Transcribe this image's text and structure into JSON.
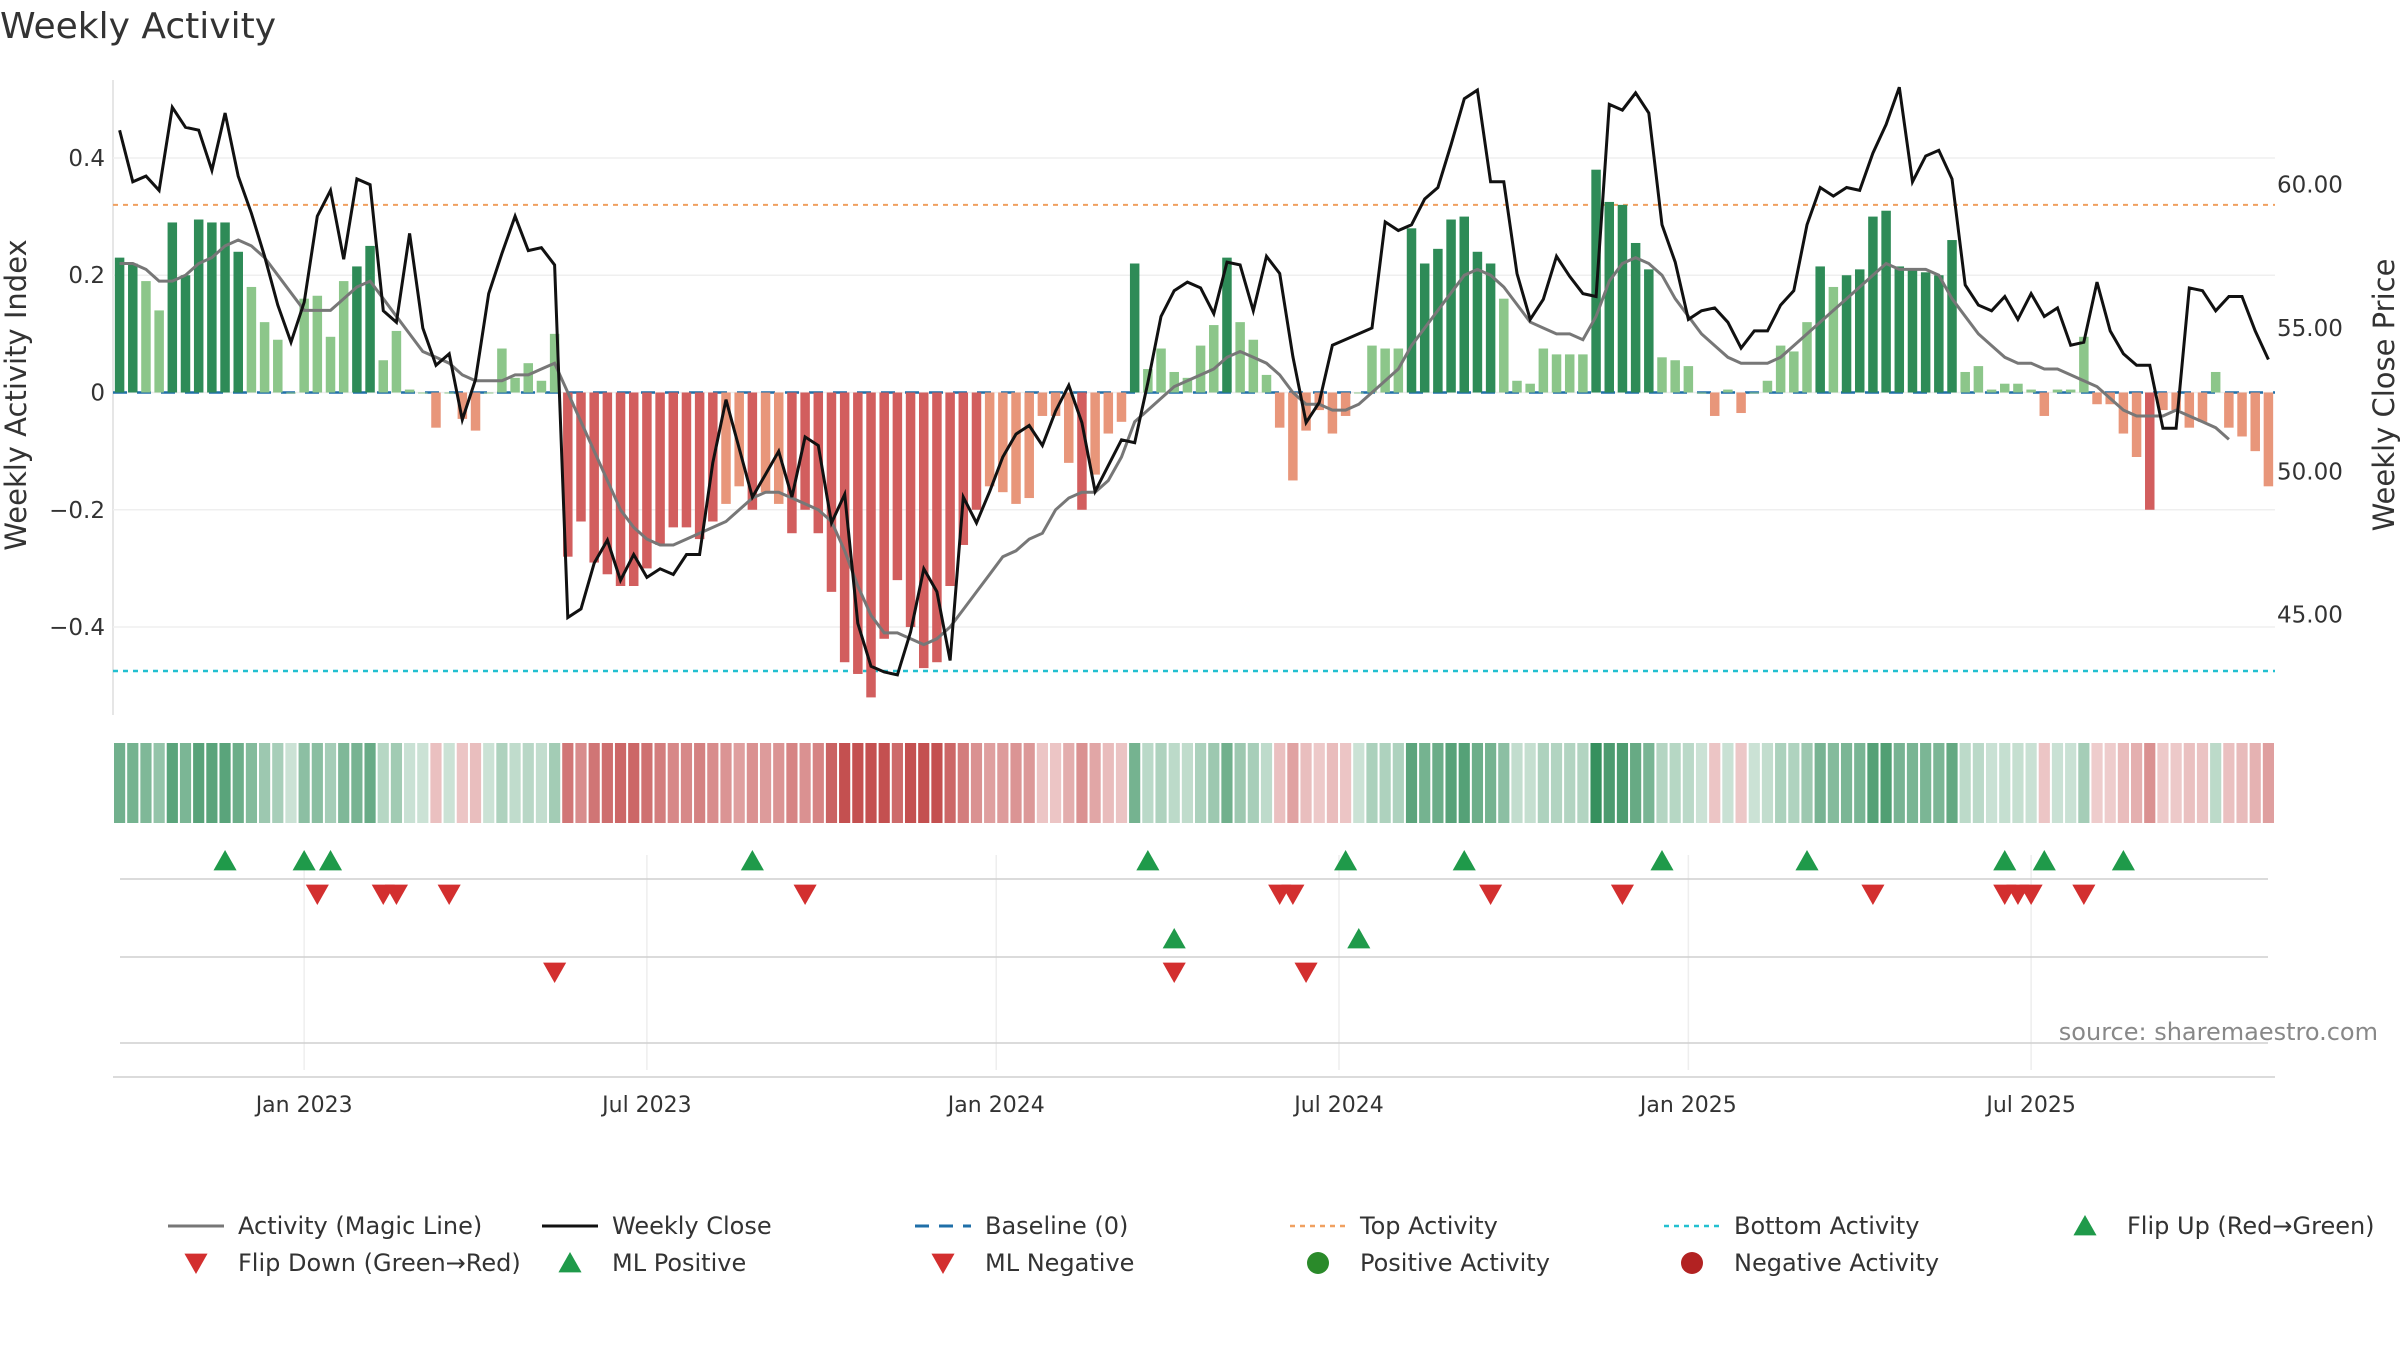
{
  "chart_data": {
    "type": "bar+line",
    "title": "Weekly Activity",
    "ylabel_left": "Weekly Activity Index",
    "ylabel_right": "Weekly Close Price",
    "left_ylim": [
      -0.55,
      0.55
    ],
    "left_ticks": [
      "0.4",
      "0.2",
      "0",
      "−0.2",
      "−0.4"
    ],
    "left_tick_values": [
      0.4,
      0.2,
      0,
      -0.2,
      -0.4
    ],
    "right_ylim": [
      41.5,
      64.0
    ],
    "right_ticks": [
      "60.00",
      "55.00",
      "50.00",
      "45.00"
    ],
    "right_tick_values": [
      60,
      55,
      50,
      45
    ],
    "x_ticks": [
      "Jan 2023",
      "Jul 2023",
      "Jan 2024",
      "Jul 2024",
      "Jan 2025",
      "Jul 2025"
    ],
    "x_tick_weeks": [
      14.5,
      40.5,
      67,
      93,
      119.5,
      145.5
    ],
    "top_activity": 0.32,
    "bottom_activity": -0.475,
    "baseline": 0,
    "activity": [
      0.23,
      0.22,
      0.19,
      0.14,
      0.29,
      0.2,
      0.295,
      0.29,
      0.29,
      0.24,
      0.18,
      0.12,
      0.09,
      0,
      0.16,
      0.165,
      0.095,
      0.19,
      0.215,
      0.25,
      0.055,
      0.105,
      0.005,
      0,
      -0.06,
      0,
      -0.045,
      -0.065,
      0,
      0.075,
      0.025,
      0.05,
      0.02,
      0.1,
      -0.28,
      -0.22,
      -0.29,
      -0.31,
      -0.33,
      -0.33,
      -0.3,
      -0.26,
      -0.23,
      -0.23,
      -0.25,
      -0.22,
      -0.19,
      -0.16,
      -0.2,
      -0.17,
      -0.19,
      -0.24,
      -0.2,
      -0.24,
      -0.34,
      -0.46,
      -0.48,
      -0.52,
      -0.42,
      -0.32,
      -0.4,
      -0.47,
      -0.46,
      -0.33,
      -0.26,
      -0.2,
      -0.16,
      -0.17,
      -0.19,
      -0.18,
      -0.04,
      -0.04,
      -0.12,
      -0.2,
      -0.14,
      -0.07,
      -0.05,
      0.22,
      0.04,
      0.075,
      0.035,
      0.025,
      0.08,
      0.115,
      0.23,
      0.12,
      0.09,
      0.03,
      -0.06,
      -0.15,
      -0.065,
      -0.03,
      -0.07,
      -0.04,
      0,
      0.08,
      0.075,
      0.075,
      0.28,
      0.22,
      0.245,
      0.295,
      0.3,
      0.24,
      0.22,
      0.16,
      0.02,
      0.015,
      0.075,
      0.065,
      0.065,
      0.065,
      0.38,
      0.325,
      0.32,
      0.255,
      0.21,
      0.06,
      0.055,
      0.045,
      0,
      -0.04,
      0.005,
      -0.035,
      0,
      0.02,
      0.08,
      0.07,
      0.12,
      0.215,
      0.18,
      0.2,
      0.21,
      0.3,
      0.31,
      0.215,
      0.21,
      0.205,
      0.2,
      0.26,
      0.035,
      0.045,
      0.005,
      0.015,
      0.015,
      0.005,
      -0.04,
      0.005,
      0.005,
      0.095,
      -0.02,
      -0.02,
      -0.07,
      -0.11,
      -0.2,
      -0.03,
      -0.03,
      -0.06,
      -0.05,
      0.035,
      -0.06,
      -0.075,
      -0.1,
      -0.16
    ],
    "magic_line": [
      0.22,
      0.22,
      0.21,
      0.19,
      0.19,
      0.2,
      0.22,
      0.23,
      0.25,
      0.26,
      0.25,
      0.23,
      0.2,
      0.17,
      0.14,
      0.14,
      0.14,
      0.16,
      0.18,
      0.19,
      0.16,
      0.13,
      0.1,
      0.07,
      0.06,
      0.05,
      0.03,
      0.02,
      0.02,
      0.02,
      0.03,
      0.03,
      0.04,
      0.05,
      0,
      -0.05,
      -0.1,
      -0.15,
      -0.2,
      -0.23,
      -0.25,
      -0.26,
      -0.26,
      -0.25,
      -0.24,
      -0.23,
      -0.22,
      -0.2,
      -0.18,
      -0.17,
      -0.17,
      -0.18,
      -0.19,
      -0.2,
      -0.22,
      -0.27,
      -0.33,
      -0.38,
      -0.41,
      -0.41,
      -0.42,
      -0.43,
      -0.42,
      -0.4,
      -0.37,
      -0.34,
      -0.31,
      -0.28,
      -0.27,
      -0.25,
      -0.24,
      -0.2,
      -0.18,
      -0.17,
      -0.17,
      -0.15,
      -0.11,
      -0.05,
      -0.03,
      -0.01,
      0.01,
      0.02,
      0.03,
      0.04,
      0.06,
      0.07,
      0.06,
      0.05,
      0.03,
      0,
      -0.02,
      -0.02,
      -0.03,
      -0.03,
      -0.02,
      0,
      0.02,
      0.04,
      0.08,
      0.11,
      0.14,
      0.17,
      0.2,
      0.21,
      0.2,
      0.18,
      0.15,
      0.12,
      0.11,
      0.1,
      0.1,
      0.09,
      0.13,
      0.19,
      0.22,
      0.23,
      0.22,
      0.2,
      0.16,
      0.13,
      0.1,
      0.08,
      0.06,
      0.05,
      0.05,
      0.05,
      0.06,
      0.08,
      0.1,
      0.12,
      0.14,
      0.16,
      0.18,
      0.2,
      0.22,
      0.21,
      0.21,
      0.21,
      0.2,
      0.16,
      0.13,
      0.1,
      0.08,
      0.06,
      0.05,
      0.05,
      0.04,
      0.04,
      0.03,
      0.02,
      0.01,
      -0.01,
      -0.03,
      -0.04,
      -0.04,
      -0.04,
      -0.03,
      -0.04,
      -0.05,
      -0.06,
      -0.08
    ],
    "weekly_close": [
      61.9,
      60.1,
      60.3,
      59.8,
      62.7,
      62.0,
      61.9,
      60.5,
      62.5,
      60.3,
      59.0,
      57.5,
      55.8,
      54.5,
      55.9,
      58.9,
      59.8,
      57.4,
      60.2,
      60.0,
      55.6,
      55.2,
      58.3,
      55.0,
      53.7,
      54.1,
      51.8,
      53.2,
      56.2,
      57.6,
      58.9,
      57.7,
      57.8,
      57.2,
      44.9,
      45.2,
      46.8,
      47.6,
      46.2,
      47.1,
      46.3,
      46.6,
      46.4,
      47.1,
      47.1,
      50.3,
      52.5,
      50.8,
      49.1,
      49.9,
      50.7,
      49.1,
      51.2,
      50.9,
      48.2,
      49.2,
      44.7,
      43.2,
      43.0,
      42.9,
      44.4,
      46.6,
      45.8,
      43.4,
      49.1,
      48.2,
      49.3,
      50.5,
      51.3,
      51.6,
      50.9,
      52.1,
      53.0,
      51.7,
      49.3,
      50.2,
      51.1,
      51.0,
      53.1,
      55.4,
      56.3,
      56.6,
      56.4,
      55.5,
      57.3,
      57.2,
      55.6,
      57.5,
      56.9,
      54.0,
      51.7,
      52.4,
      54.4,
      54.6,
      54.8,
      55.0,
      58.7,
      58.4,
      58.6,
      59.5,
      59.9,
      61.4,
      63.0,
      63.3,
      60.1,
      60.1,
      56.9,
      55.3,
      56.0,
      57.5,
      56.8,
      56.2,
      56.1,
      62.8,
      62.6,
      63.2,
      62.5,
      58.6,
      57.3,
      55.3,
      55.6,
      55.7,
      55.2,
      54.3,
      54.9,
      54.9,
      55.8,
      56.3,
      58.6,
      59.9,
      59.6,
      59.9,
      59.8,
      61.1,
      62.1,
      63.4,
      60.1,
      61.0,
      61.2,
      60.2,
      56.5,
      55.8,
      55.6,
      56.1,
      55.3,
      56.2,
      55.4,
      55.7,
      54.4,
      54.5,
      56.6,
      54.9,
      54.1,
      53.7,
      53.7,
      51.5,
      51.5,
      56.4,
      56.3,
      55.6,
      56.1,
      56.1,
      54.9,
      53.9
    ],
    "flip_up": [
      8,
      14,
      16,
      48,
      78,
      93,
      102,
      117,
      128,
      143,
      146,
      152
    ],
    "flip_down": [
      15,
      20,
      21,
      25,
      52,
      88,
      89,
      104,
      114,
      133,
      143,
      144,
      145,
      149
    ],
    "ml_positive": [
      80,
      94
    ],
    "ml_negative": [
      33,
      80,
      90
    ],
    "source": "source: sharemaestro.com",
    "legend": [
      "Activity (Magic Line)",
      "Weekly Close",
      "Baseline (0)",
      "Top Activity",
      "Bottom Activity",
      "Flip Up (Red→Green)",
      "Flip Down (Green→Red)",
      "ML Positive",
      "ML Negative",
      "Positive Activity",
      "Negative Activity"
    ]
  },
  "colors": {
    "dark_green": "#2e8b57",
    "light_green": "#8cc68a",
    "dark_red": "#d25e5e",
    "light_red": "#e8967a",
    "magic_line": "#777777",
    "close_line": "#111111",
    "baseline": "#1f6fa8",
    "top_activity": "#f0a060",
    "bottom_activity": "#22c0d0",
    "flip_up": "#1f9a4a",
    "flip_down": "#d32f2f",
    "pos_activity": "#2a8a2a",
    "neg_activity": "#b22222"
  }
}
